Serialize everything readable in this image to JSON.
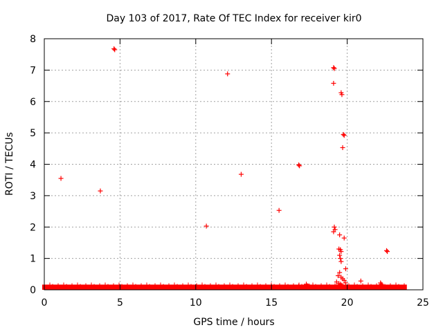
{
  "chart_data": {
    "type": "scatter",
    "title": "Day 103 of 2017, Rate Of TEC Index for receiver kir0",
    "xlabel": "GPS time / hours",
    "ylabel": "ROTI / TECUs",
    "xlim": [
      0,
      25
    ],
    "ylim": [
      0,
      8
    ],
    "x_ticks": [
      0,
      5,
      10,
      15,
      20,
      25
    ],
    "y_ticks": [
      0,
      1,
      2,
      3,
      4,
      5,
      6,
      7,
      8
    ],
    "grid": true,
    "marker": "+",
    "color": "#ff0000",
    "baseline_band": {
      "x_start": 0,
      "x_end": 23.8,
      "y_max": 0.1
    },
    "points": [
      [
        1.1,
        3.55
      ],
      [
        3.7,
        3.15
      ],
      [
        4.6,
        7.68
      ],
      [
        4.65,
        7.65
      ],
      [
        10.7,
        2.03
      ],
      [
        12.1,
        6.88
      ],
      [
        13.0,
        3.68
      ],
      [
        15.5,
        2.53
      ],
      [
        16.8,
        3.98
      ],
      [
        16.85,
        3.95
      ],
      [
        19.1,
        7.08
      ],
      [
        19.15,
        7.05
      ],
      [
        19.1,
        6.58
      ],
      [
        19.6,
        6.28
      ],
      [
        19.65,
        6.22
      ],
      [
        19.75,
        4.95
      ],
      [
        19.8,
        4.92
      ],
      [
        19.7,
        4.53
      ],
      [
        19.15,
        2.0
      ],
      [
        19.2,
        1.92
      ],
      [
        19.1,
        1.85
      ],
      [
        19.5,
        1.75
      ],
      [
        19.8,
        1.65
      ],
      [
        19.45,
        1.3
      ],
      [
        19.55,
        1.28
      ],
      [
        19.6,
        1.22
      ],
      [
        19.5,
        1.1
      ],
      [
        19.55,
        1.0
      ],
      [
        19.6,
        0.9
      ],
      [
        19.9,
        0.67
      ],
      [
        19.5,
        0.55
      ],
      [
        19.4,
        0.45
      ],
      [
        19.6,
        0.4
      ],
      [
        19.7,
        0.35
      ],
      [
        19.8,
        0.3
      ],
      [
        19.3,
        0.25
      ],
      [
        19.9,
        0.22
      ],
      [
        19.45,
        0.2
      ],
      [
        19.55,
        0.18
      ],
      [
        19.65,
        0.15
      ],
      [
        17.3,
        0.18
      ],
      [
        17.5,
        0.12
      ],
      [
        16.8,
        0.12
      ],
      [
        20.9,
        0.28
      ],
      [
        22.2,
        0.22
      ],
      [
        22.25,
        0.18
      ],
      [
        22.6,
        1.25
      ],
      [
        22.65,
        1.22
      ]
    ]
  }
}
